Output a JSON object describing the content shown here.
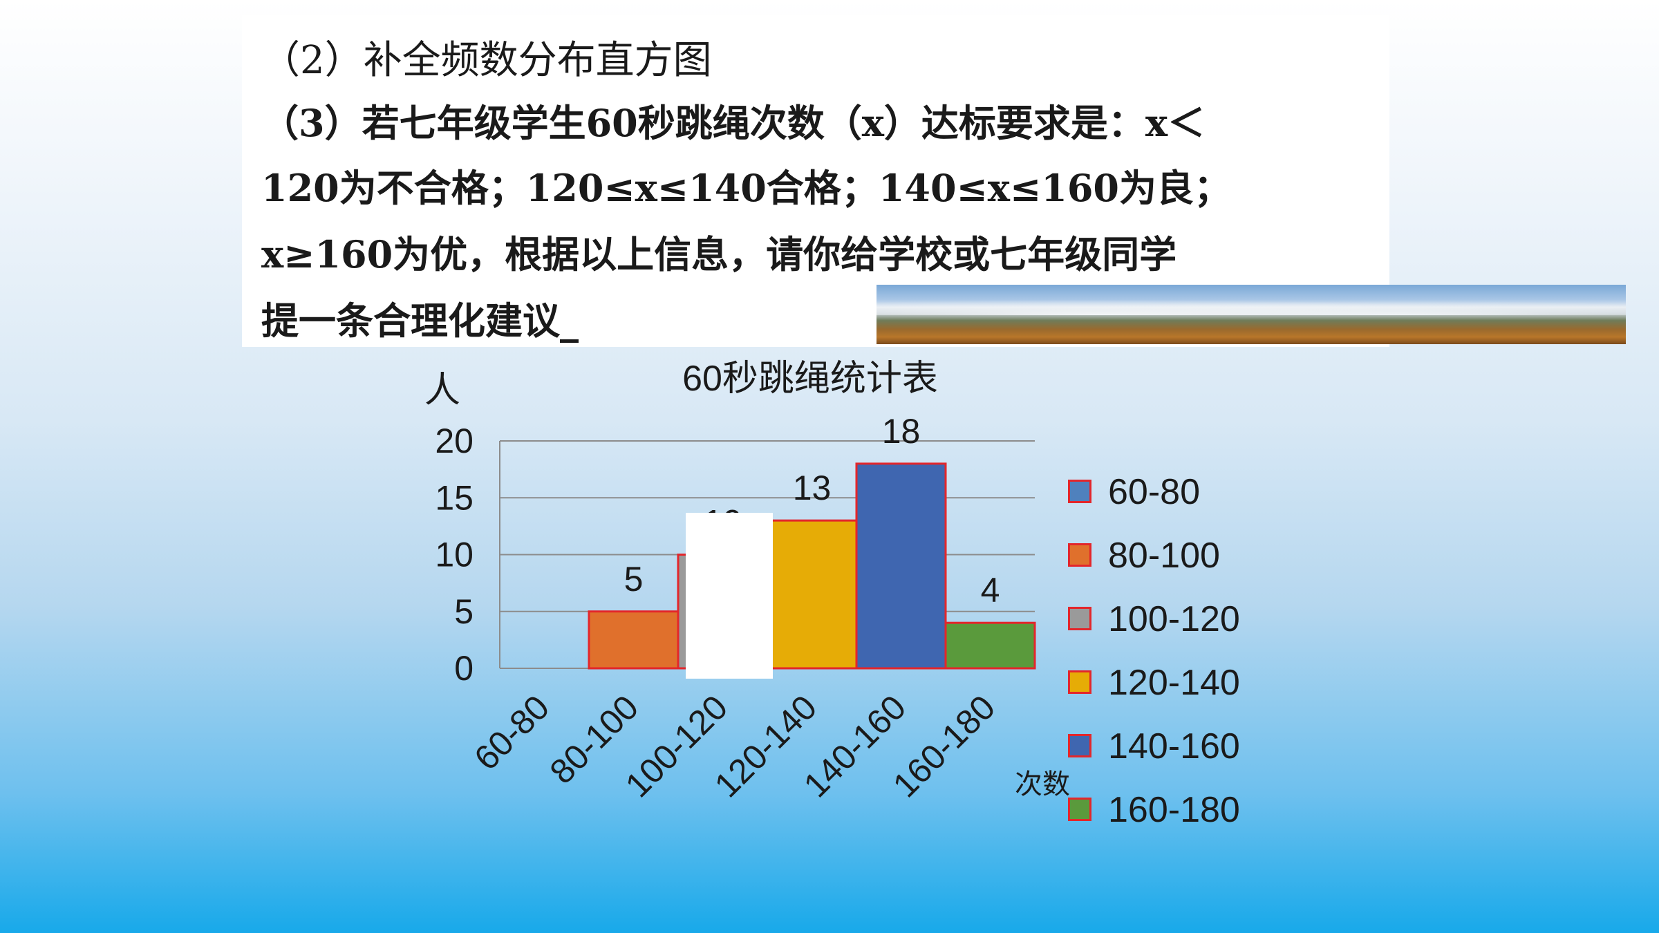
{
  "question": {
    "q2": "（2）补全频数分布直方图",
    "q3_line1": "（3）若七年级学生60秒跳绳次数（x）达标要求是：x＜",
    "q3_line2": "120为不合格；120≤x≤140合格；140≤x≤160为良；",
    "q3_line3": "x≥160为优，根据以上信息，请你给学校或七年级同学",
    "q3_line4": "提一条合理化建议_"
  },
  "chart_data": {
    "type": "bar",
    "title": "60秒跳绳统计表",
    "ylabel": "人",
    "xlabel": "次数",
    "categories": [
      "60-80",
      "80-100",
      "100-120",
      "120-140",
      "140-160",
      "160-180"
    ],
    "values": [
      0,
      5,
      10,
      13,
      18,
      4
    ],
    "data_labels": [
      "",
      "5",
      "10",
      "13",
      "18",
      "4"
    ],
    "colors": [
      "#4f81bd",
      "#e0702c",
      "#9a9a9a",
      "#e6ac06",
      "#3f66b0",
      "#5a9a3c"
    ],
    "bar_border": "#e3262b",
    "ylim": [
      0,
      20
    ],
    "yticks": [
      "0",
      "5",
      "10",
      "15",
      "20"
    ],
    "grid": true,
    "legend": "right"
  }
}
